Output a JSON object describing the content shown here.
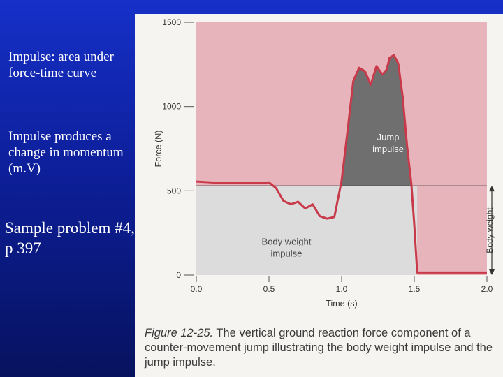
{
  "slide": {
    "note_impulse": "Impulse:  area under force-time curve",
    "note_momentum": "Impulse produces a change in momentum (m.V)",
    "note_sample": "Sample problem #4, p 397"
  },
  "figure": {
    "caption_label": "Figure 12-25.",
    "caption_text": " The vertical ground reaction force component of a counter-movement jump illustrating the body weight impulse and the jump impulse."
  },
  "colors": {
    "plot_background": "#e8b4bc",
    "body_weight_region": "#dcdcdc",
    "jump_region": "#6f6f6f",
    "force_curve": "#c83a4a",
    "body_weight_line": "#444444"
  },
  "chart_data": {
    "type": "line",
    "xlabel": "Time (s)",
    "ylabel": "Force (N)",
    "xlim": [
      0,
      2.0
    ],
    "ylim": [
      0,
      1500
    ],
    "xticks": [
      "0.0",
      "0.5",
      "1.0",
      "1.5",
      "2.0"
    ],
    "yticks": [
      "0",
      "500",
      "1000",
      "1500"
    ],
    "body_weight": 530,
    "body_weight_label": "Body weight",
    "annotations": {
      "jump_impulse": "Jump impulse",
      "body_weight_impulse": "Body weight impulse"
    },
    "series": [
      {
        "x": [
          0.0,
          0.2,
          0.4,
          0.5,
          0.55,
          0.6,
          0.65,
          0.7,
          0.75,
          0.8,
          0.85,
          0.9,
          0.95,
          1.0,
          1.04,
          1.08,
          1.12,
          1.16,
          1.2,
          1.24,
          1.28,
          1.31,
          1.33,
          1.36,
          1.39,
          1.42,
          1.45,
          1.48,
          1.5,
          1.52,
          1.6,
          1.8,
          2.0
        ],
        "y": [
          555,
          545,
          545,
          550,
          515,
          440,
          420,
          435,
          395,
          420,
          350,
          335,
          345,
          560,
          850,
          1150,
          1230,
          1210,
          1130,
          1240,
          1190,
          1220,
          1290,
          1305,
          1255,
          1060,
          770,
          540,
          300,
          15,
          15,
          15,
          15
        ]
      }
    ]
  }
}
